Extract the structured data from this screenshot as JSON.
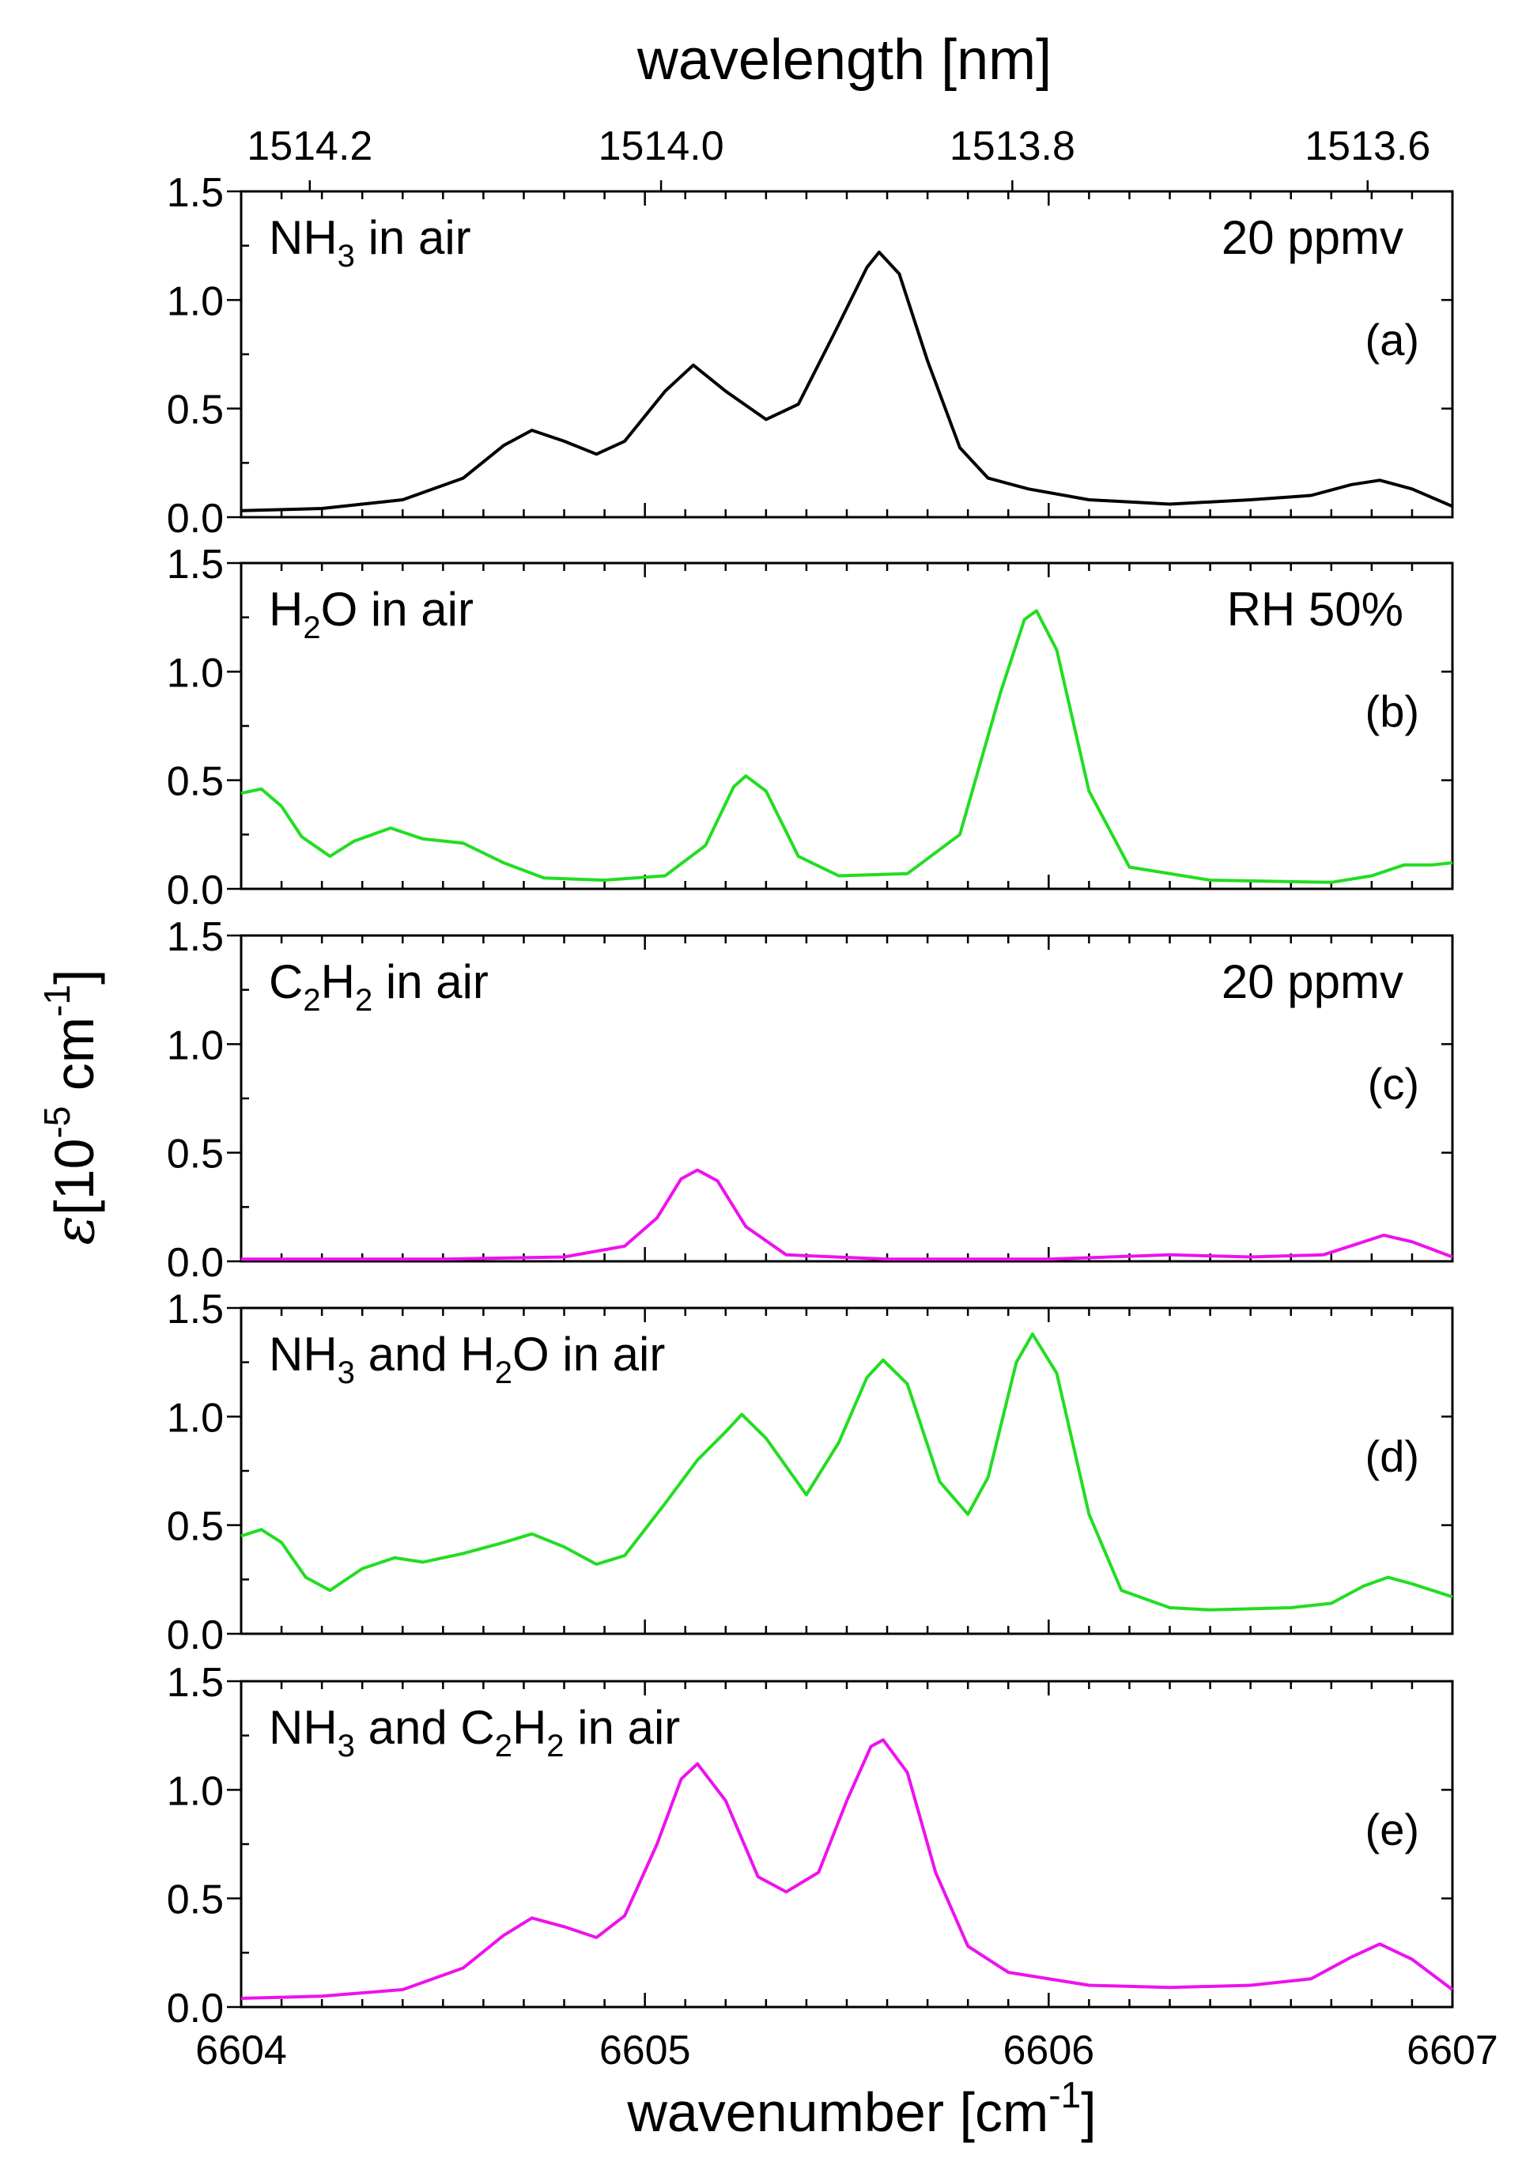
{
  "figure": {
    "top_axis_title": "wavelength [nm]",
    "bottom_axis_title_main": "wavenumber [cm",
    "bottom_axis_title_sup": "-1",
    "bottom_axis_title_end": "]",
    "y_axis_symbol": "ε",
    "y_axis_unit_a": "[10",
    "y_axis_unit_sup1": "-5",
    "y_axis_unit_b": " cm",
    "y_axis_unit_sup2": "-1",
    "y_axis_unit_c": "]",
    "colors": {
      "black": "#000000",
      "green": "#22dd22",
      "magenta": "#ee11ee"
    }
  },
  "chart_data": {
    "type": "line",
    "shared_x": {
      "label": "wavenumber [cm-1]",
      "range": [
        6604,
        6607
      ],
      "ticks": [
        6604,
        6605,
        6606,
        6607
      ],
      "tick_labels": [
        "6604",
        "6605",
        "6606",
        "6607"
      ]
    },
    "top_axis": {
      "label": "wavelength [nm]",
      "tick_labels": [
        "1514.2",
        "1514.0",
        "1513.8",
        "1513.6"
      ],
      "tick_wavenumbers": [
        6604.17,
        6605.04,
        6605.91,
        6606.79
      ]
    },
    "y_axis": {
      "label": "ε [10^-5 cm^-1]",
      "range": [
        0,
        1.5
      ],
      "ticks": [
        0,
        0.5,
        1.0,
        1.5
      ],
      "tick_labels": [
        "0.0",
        "0.5",
        "1.0",
        "1.5"
      ]
    },
    "panels": [
      {
        "id": "a",
        "panel_label": "(a)",
        "gas": {
          "p1": "NH",
          "s1": "3",
          "p2": " in air"
        },
        "condition": "20 ppmv",
        "color": "#000000",
        "points": [
          [
            6604.0,
            0.03
          ],
          [
            6604.2,
            0.04
          ],
          [
            6604.4,
            0.08
          ],
          [
            6604.55,
            0.18
          ],
          [
            6604.65,
            0.33
          ],
          [
            6604.72,
            0.4
          ],
          [
            6604.8,
            0.35
          ],
          [
            6604.88,
            0.29
          ],
          [
            6604.95,
            0.35
          ],
          [
            6605.05,
            0.58
          ],
          [
            6605.12,
            0.7
          ],
          [
            6605.2,
            0.58
          ],
          [
            6605.3,
            0.45
          ],
          [
            6605.38,
            0.52
          ],
          [
            6605.47,
            0.85
          ],
          [
            6605.55,
            1.15
          ],
          [
            6605.58,
            1.22
          ],
          [
            6605.63,
            1.12
          ],
          [
            6605.7,
            0.72
          ],
          [
            6605.78,
            0.32
          ],
          [
            6605.85,
            0.18
          ],
          [
            6605.95,
            0.13
          ],
          [
            6606.1,
            0.08
          ],
          [
            6606.3,
            0.06
          ],
          [
            6606.5,
            0.08
          ],
          [
            6606.65,
            0.1
          ],
          [
            6606.75,
            0.15
          ],
          [
            6606.82,
            0.17
          ],
          [
            6606.9,
            0.13
          ],
          [
            6607.0,
            0.05
          ]
        ]
      },
      {
        "id": "b",
        "panel_label": "(b)",
        "gas": {
          "p1": "H",
          "s1": "2",
          "p2": "O in air"
        },
        "condition": "RH 50%",
        "color": "#22dd22",
        "points": [
          [
            6604.0,
            0.44
          ],
          [
            6604.05,
            0.46
          ],
          [
            6604.1,
            0.38
          ],
          [
            6604.15,
            0.24
          ],
          [
            6604.22,
            0.15
          ],
          [
            6604.28,
            0.22
          ],
          [
            6604.37,
            0.28
          ],
          [
            6604.45,
            0.23
          ],
          [
            6604.55,
            0.21
          ],
          [
            6604.65,
            0.12
          ],
          [
            6604.75,
            0.05
          ],
          [
            6604.9,
            0.04
          ],
          [
            6605.05,
            0.06
          ],
          [
            6605.15,
            0.2
          ],
          [
            6605.22,
            0.47
          ],
          [
            6605.25,
            0.52
          ],
          [
            6605.3,
            0.45
          ],
          [
            6605.38,
            0.15
          ],
          [
            6605.48,
            0.06
          ],
          [
            6605.65,
            0.07
          ],
          [
            6605.78,
            0.25
          ],
          [
            6605.88,
            0.9
          ],
          [
            6605.94,
            1.24
          ],
          [
            6605.97,
            1.28
          ],
          [
            6606.02,
            1.1
          ],
          [
            6606.1,
            0.45
          ],
          [
            6606.2,
            0.1
          ],
          [
            6606.4,
            0.04
          ],
          [
            6606.7,
            0.03
          ],
          [
            6606.8,
            0.06
          ],
          [
            6606.88,
            0.11
          ],
          [
            6606.95,
            0.11
          ],
          [
            6607.0,
            0.12
          ]
        ]
      },
      {
        "id": "c",
        "panel_label": "(c)",
        "gas": {
          "p1": "C",
          "s1": "2",
          "p2": "H",
          "s2": "2",
          "p3": " in  air"
        },
        "condition": "20 ppmv",
        "color": "#ee11ee",
        "points": [
          [
            6604.0,
            0.01
          ],
          [
            6604.5,
            0.01
          ],
          [
            6604.8,
            0.02
          ],
          [
            6604.95,
            0.07
          ],
          [
            6605.03,
            0.2
          ],
          [
            6605.09,
            0.38
          ],
          [
            6605.13,
            0.42
          ],
          [
            6605.18,
            0.37
          ],
          [
            6605.25,
            0.16
          ],
          [
            6605.35,
            0.03
          ],
          [
            6605.6,
            0.01
          ],
          [
            6606.0,
            0.01
          ],
          [
            6606.3,
            0.03
          ],
          [
            6606.5,
            0.02
          ],
          [
            6606.68,
            0.03
          ],
          [
            6606.78,
            0.09
          ],
          [
            6606.83,
            0.12
          ],
          [
            6606.9,
            0.09
          ],
          [
            6607.0,
            0.02
          ]
        ]
      },
      {
        "id": "d",
        "panel_label": "(d)",
        "gas": {
          "p1": "NH",
          "s1": "3",
          "p2": " and H",
          "s2": "2",
          "p3": "O in air"
        },
        "condition": "",
        "color": "#22dd22",
        "points": [
          [
            6604.0,
            0.45
          ],
          [
            6604.05,
            0.48
          ],
          [
            6604.1,
            0.42
          ],
          [
            6604.16,
            0.26
          ],
          [
            6604.22,
            0.2
          ],
          [
            6604.3,
            0.3
          ],
          [
            6604.38,
            0.35
          ],
          [
            6604.45,
            0.33
          ],
          [
            6604.55,
            0.37
          ],
          [
            6604.65,
            0.42
          ],
          [
            6604.72,
            0.46
          ],
          [
            6604.8,
            0.4
          ],
          [
            6604.88,
            0.32
          ],
          [
            6604.95,
            0.36
          ],
          [
            6605.05,
            0.6
          ],
          [
            6605.13,
            0.8
          ],
          [
            6605.2,
            0.93
          ],
          [
            6605.24,
            1.01
          ],
          [
            6605.3,
            0.9
          ],
          [
            6605.4,
            0.64
          ],
          [
            6605.48,
            0.88
          ],
          [
            6605.55,
            1.18
          ],
          [
            6605.59,
            1.26
          ],
          [
            6605.65,
            1.15
          ],
          [
            6605.73,
            0.7
          ],
          [
            6605.8,
            0.55
          ],
          [
            6605.85,
            0.72
          ],
          [
            6605.92,
            1.25
          ],
          [
            6605.96,
            1.38
          ],
          [
            6606.02,
            1.2
          ],
          [
            6606.1,
            0.55
          ],
          [
            6606.18,
            0.2
          ],
          [
            6606.3,
            0.12
          ],
          [
            6606.4,
            0.11
          ],
          [
            6606.6,
            0.12
          ],
          [
            6606.7,
            0.14
          ],
          [
            6606.78,
            0.22
          ],
          [
            6606.84,
            0.26
          ],
          [
            6606.9,
            0.23
          ],
          [
            6607.0,
            0.17
          ]
        ]
      },
      {
        "id": "e",
        "panel_label": "(e)",
        "gas": {
          "p1": "NH",
          "s1": "3",
          "p2": " and C",
          "s2": "2",
          "p3": "H",
          "s3": "2",
          "p4": " in air"
        },
        "condition": "",
        "color": "#ee11ee",
        "points": [
          [
            6604.0,
            0.04
          ],
          [
            6604.2,
            0.05
          ],
          [
            6604.4,
            0.08
          ],
          [
            6604.55,
            0.18
          ],
          [
            6604.65,
            0.33
          ],
          [
            6604.72,
            0.41
          ],
          [
            6604.8,
            0.37
          ],
          [
            6604.88,
            0.32
          ],
          [
            6604.95,
            0.42
          ],
          [
            6605.03,
            0.75
          ],
          [
            6605.09,
            1.05
          ],
          [
            6605.13,
            1.12
          ],
          [
            6605.2,
            0.95
          ],
          [
            6605.28,
            0.6
          ],
          [
            6605.35,
            0.53
          ],
          [
            6605.43,
            0.62
          ],
          [
            6605.5,
            0.95
          ],
          [
            6605.56,
            1.2
          ],
          [
            6605.59,
            1.23
          ],
          [
            6605.65,
            1.08
          ],
          [
            6605.72,
            0.62
          ],
          [
            6605.8,
            0.28
          ],
          [
            6605.9,
            0.16
          ],
          [
            6606.1,
            0.1
          ],
          [
            6606.3,
            0.09
          ],
          [
            6606.5,
            0.1
          ],
          [
            6606.65,
            0.13
          ],
          [
            6606.75,
            0.23
          ],
          [
            6606.82,
            0.29
          ],
          [
            6606.9,
            0.22
          ],
          [
            6607.0,
            0.08
          ]
        ]
      }
    ]
  }
}
